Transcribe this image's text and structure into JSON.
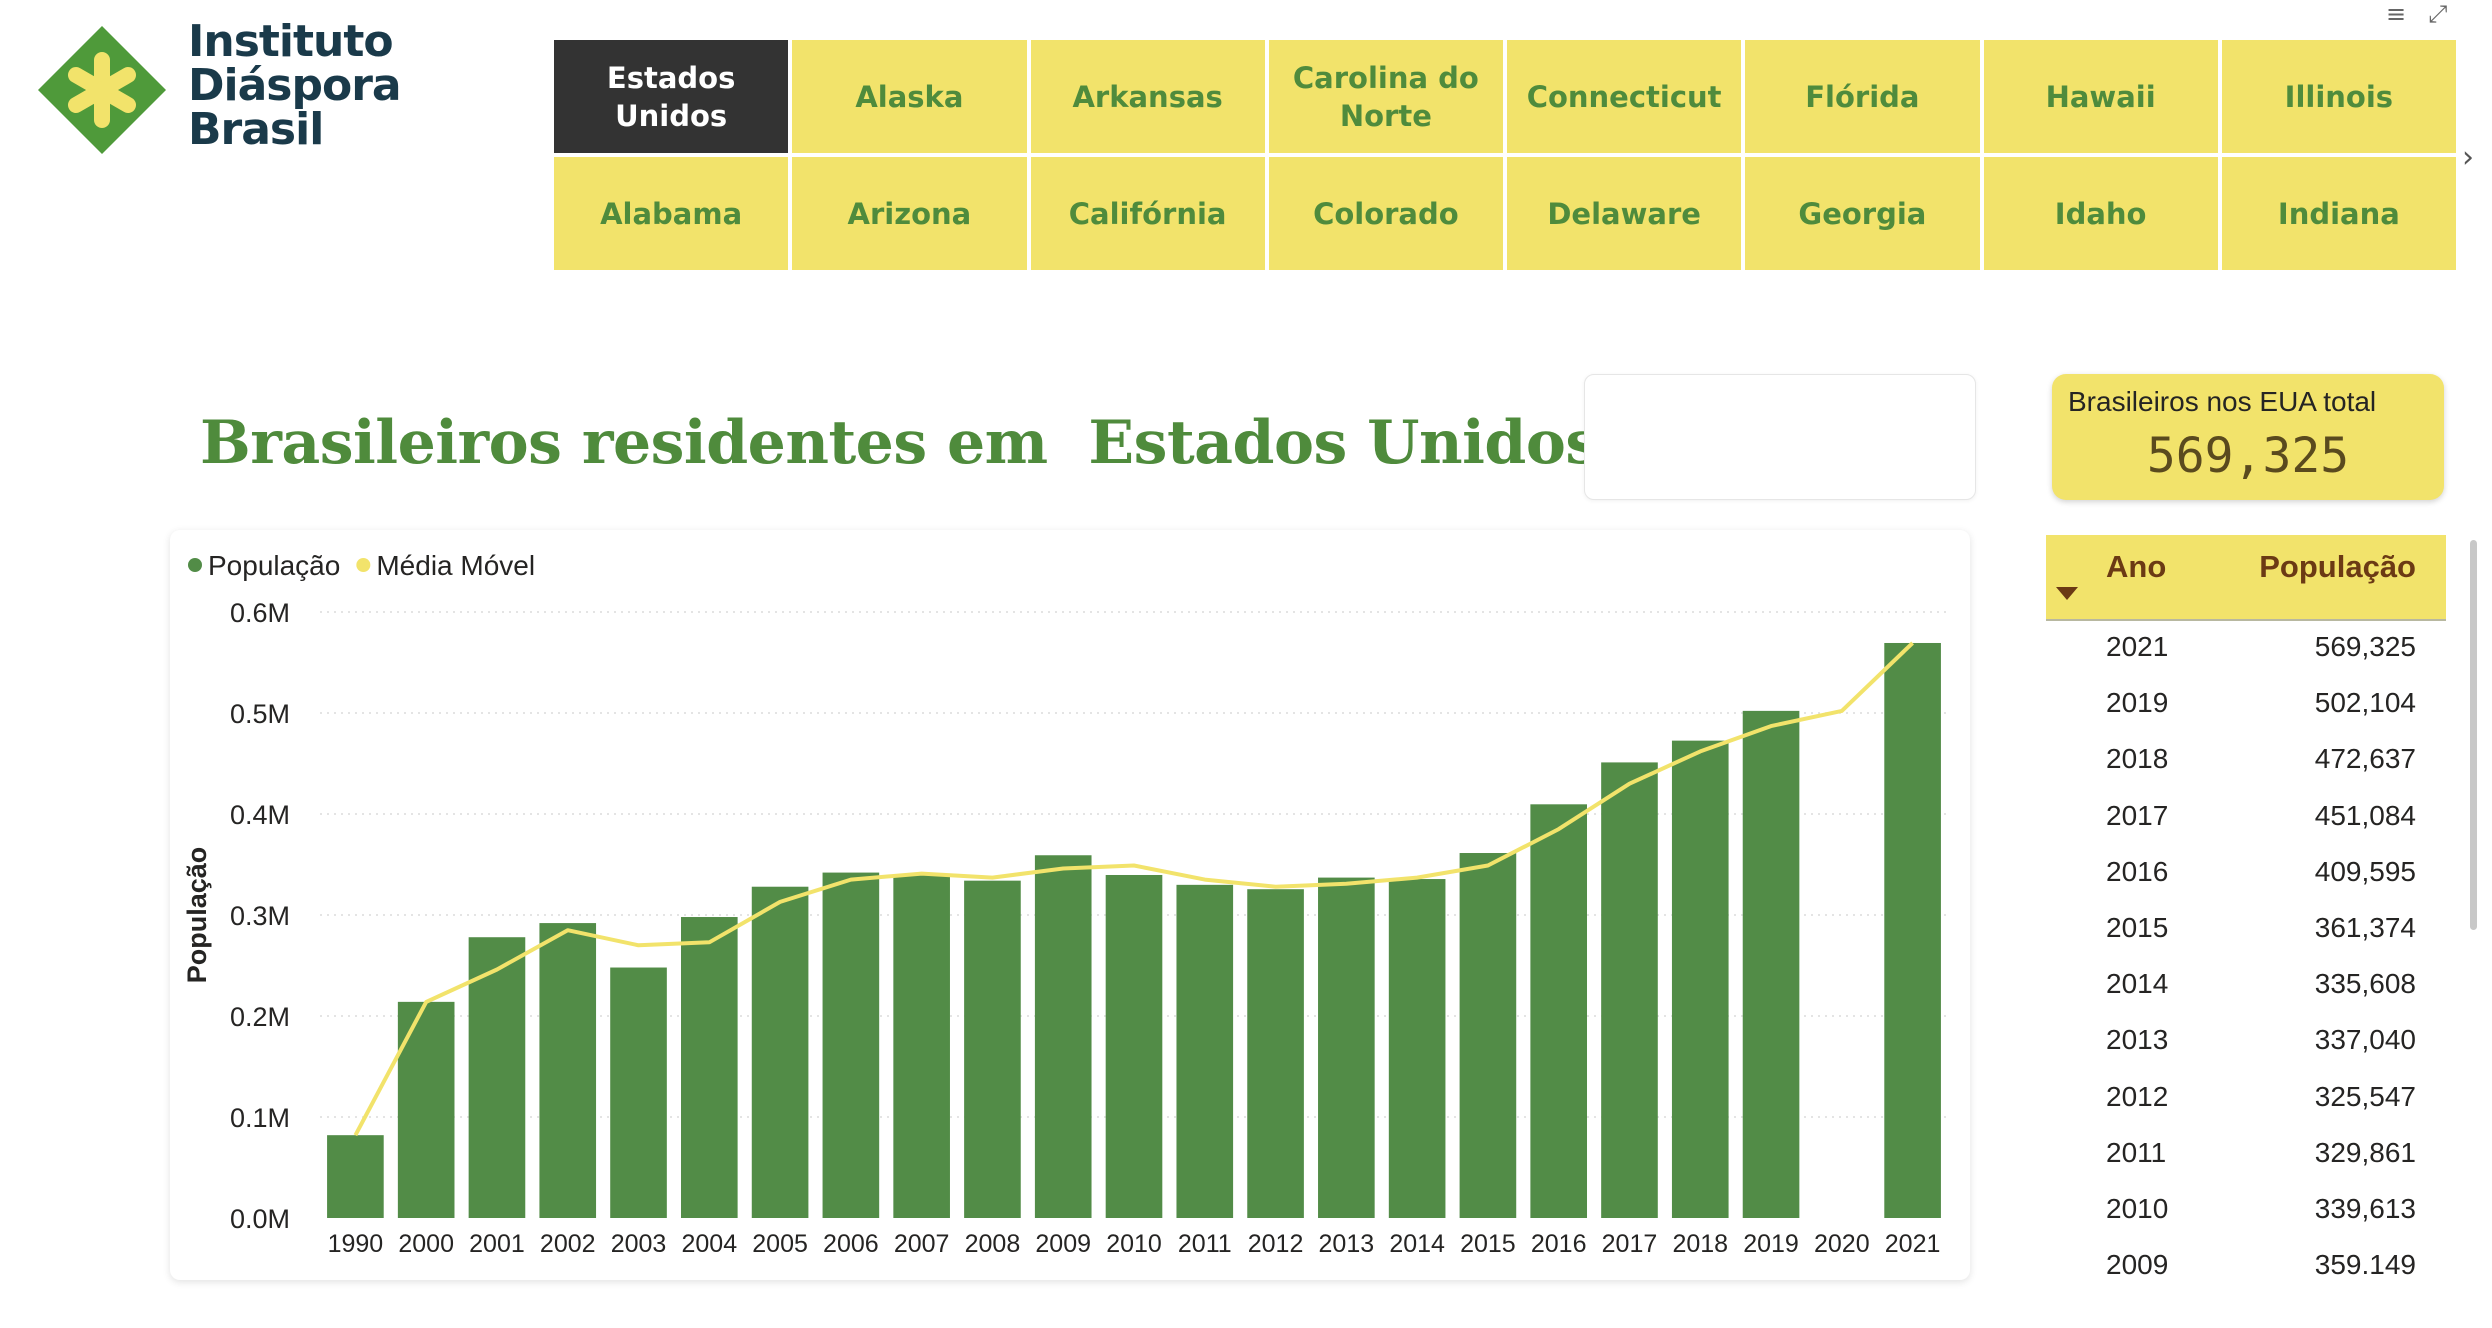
{
  "brand": {
    "line1": "Instituto",
    "line2": "Diáspora",
    "line3": "Brasil",
    "colors": {
      "mark_green": "#4f9a3a",
      "mark_asterisk": "#f2e36b",
      "text": "#1a3a4a"
    }
  },
  "states": {
    "row1": [
      "Estados Unidos",
      "Alaska",
      "Arkansas",
      "Carolina do Norte",
      "Connecticut",
      "Flórida",
      "Hawaii",
      "Illinois"
    ],
    "row2": [
      "Alabama",
      "Arizona",
      "Califórnia",
      "Colorado",
      "Delaware",
      "Georgia",
      "Idaho",
      "Indiana"
    ],
    "selected": "Estados Unidos",
    "next_icon": "chevron-right-icon"
  },
  "header_icons": [
    "filter-icon",
    "expand-icon"
  ],
  "title": "Brasileiros residentes em  Estados Unidos",
  "kpi": {
    "label": "Brasileiros nos EUA total",
    "value": "569,325"
  },
  "colors": {
    "tile_bg": "#f2e36b",
    "tile_text": "#4f8b3c",
    "active_bg": "#333333",
    "bar": "#528c47",
    "line": "#f2e36b"
  },
  "chart_data": {
    "type": "bar",
    "legend": [
      "População",
      "Média Móvel"
    ],
    "legend_position": "top-left",
    "ylabel": "População",
    "xlabel": "",
    "ylim": [
      0,
      600000
    ],
    "yticks": [
      "0.0M",
      "0.1M",
      "0.2M",
      "0.3M",
      "0.4M",
      "0.5M",
      "0.6M"
    ],
    "ytick_values": [
      0,
      100000,
      200000,
      300000,
      400000,
      500000,
      600000
    ],
    "grid": true,
    "categories": [
      "1990",
      "2000",
      "2001",
      "2002",
      "2003",
      "2004",
      "2005",
      "2006",
      "2007",
      "2008",
      "2009",
      "2010",
      "2011",
      "2012",
      "2013",
      "2014",
      "2015",
      "2016",
      "2017",
      "2018",
      "2019",
      "2020",
      "2021"
    ],
    "series": [
      {
        "name": "População",
        "kind": "bar",
        "values": [
          82000,
          214000,
          278000,
          292000,
          248000,
          298000,
          328000,
          342000,
          340000,
          334000,
          359149,
          339613,
          329861,
          325547,
          337040,
          335608,
          361374,
          409595,
          451084,
          472637,
          502104,
          null,
          569325
        ]
      },
      {
        "name": "Média Móvel",
        "kind": "line",
        "values": [
          82000,
          214000,
          246000,
          285000,
          270000,
          273000,
          313000,
          335000,
          341000,
          337000,
          346000,
          349000,
          335000,
          328000,
          331000,
          337000,
          349000,
          385000,
          430000,
          462000,
          487000,
          502104,
          569325
        ]
      }
    ]
  },
  "table": {
    "headers": {
      "year": "Ano",
      "population": "População"
    },
    "sort_icon": "sort-desc-icon",
    "rows": [
      {
        "year": "2021",
        "pop": "569,325"
      },
      {
        "year": "2019",
        "pop": "502,104"
      },
      {
        "year": "2018",
        "pop": "472,637"
      },
      {
        "year": "2017",
        "pop": "451,084"
      },
      {
        "year": "2016",
        "pop": "409,595"
      },
      {
        "year": "2015",
        "pop": "361,374"
      },
      {
        "year": "2014",
        "pop": "335,608"
      },
      {
        "year": "2013",
        "pop": "337,040"
      },
      {
        "year": "2012",
        "pop": "325,547"
      },
      {
        "year": "2011",
        "pop": "329,861"
      },
      {
        "year": "2010",
        "pop": "339,613"
      },
      {
        "year": "2009",
        "pop": "359.149"
      }
    ]
  }
}
